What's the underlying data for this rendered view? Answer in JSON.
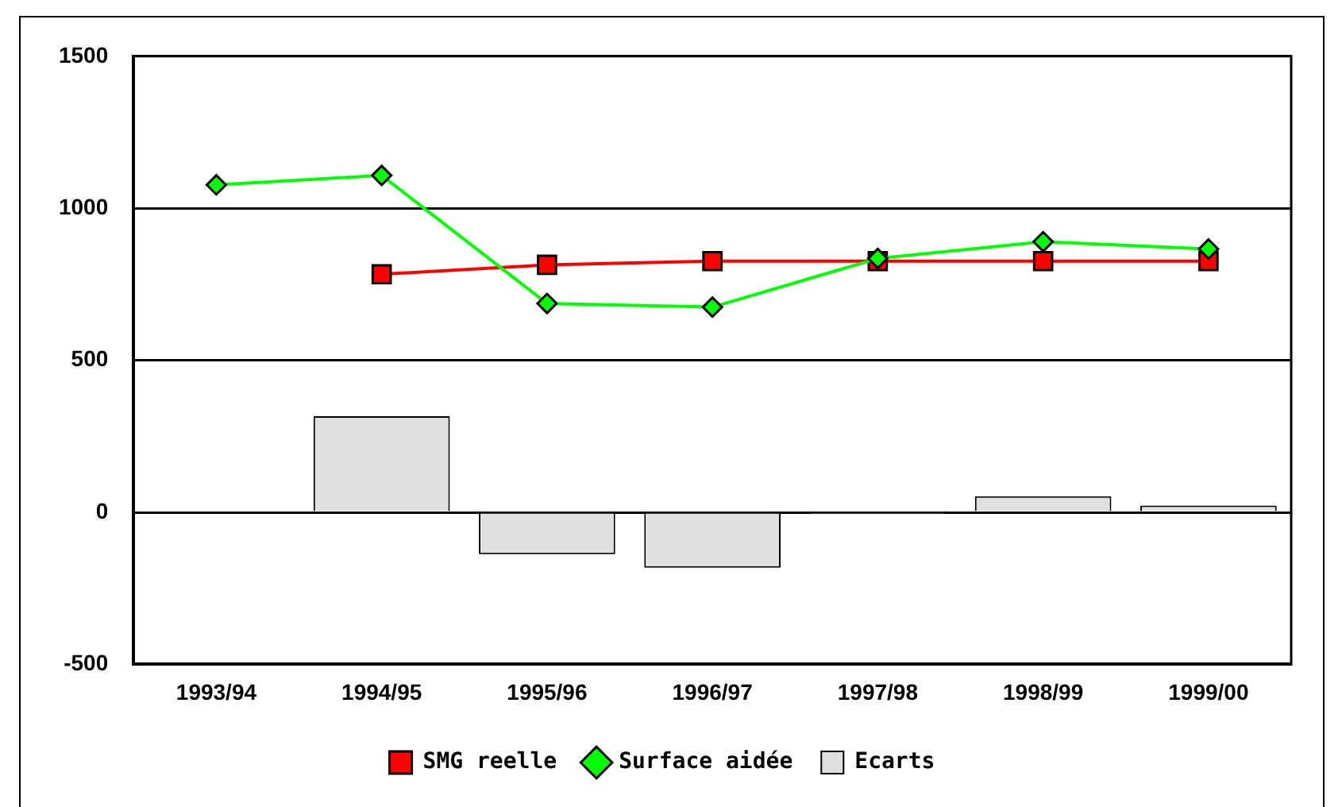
{
  "chart_data": {
    "type": "bar",
    "categories": [
      "1993/94",
      "1994/95",
      "1995/96",
      "1996/97",
      "1997/98",
      "1998/99",
      "1999/00"
    ],
    "series": [
      {
        "name": "SMG reelle",
        "type": "line",
        "marker": "square",
        "color": "#ff0000",
        "values": [
          null,
          783,
          814,
          826,
          826,
          826,
          826
        ]
      },
      {
        "name": "Surface aidée",
        "type": "line",
        "marker": "diamond",
        "color": "#00ff00",
        "values": [
          1077,
          1108,
          687,
          675,
          835,
          890,
          866
        ]
      },
      {
        "name": "Ecarts",
        "color": "#e0e0e0",
        "values": [
          null,
          316,
          -138,
          -182,
          -6,
          53,
          22
        ]
      }
    ],
    "ylim": [
      -500,
      1500
    ],
    "yticks": [
      -500,
      0,
      500,
      1000,
      1500
    ],
    "grid": "y",
    "legend": "bottom"
  }
}
